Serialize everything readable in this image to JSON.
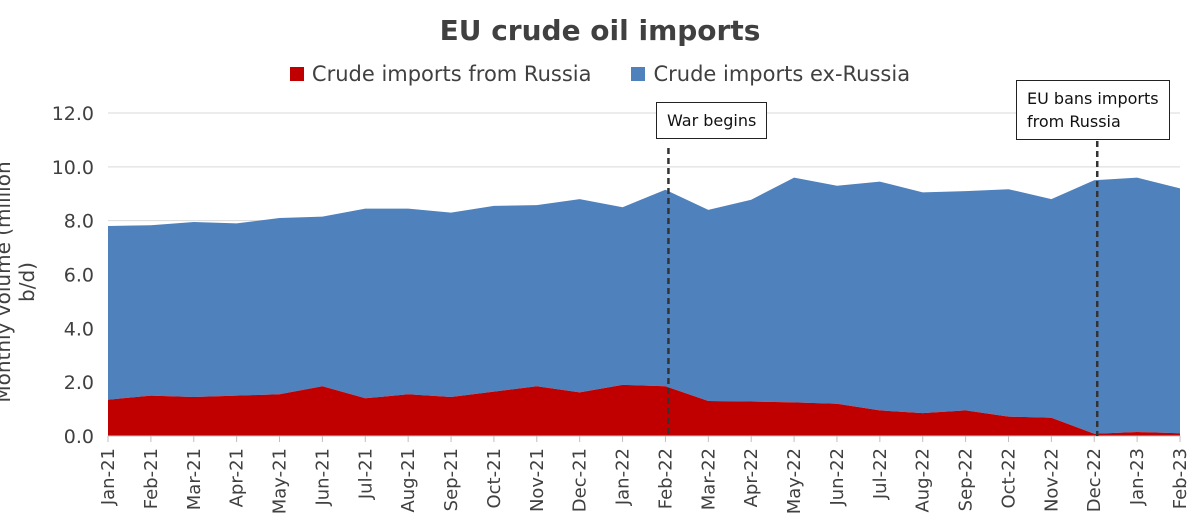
{
  "chart_data": {
    "type": "area",
    "stacked": true,
    "title": "EU crude oil imports",
    "ylabel": "Monthly volume (million b/d)",
    "xlabel": "",
    "ylim": [
      0,
      12
    ],
    "yticks": [
      "0.0",
      "2.0",
      "4.0",
      "6.0",
      "8.0",
      "10.0",
      "12.0"
    ],
    "grid": true,
    "legend_position": "top",
    "categories": [
      "Jan-21",
      "Feb-21",
      "Mar-21",
      "Apr-21",
      "May-21",
      "Jun-21",
      "Jul-21",
      "Aug-21",
      "Sep-21",
      "Oct-21",
      "Nov-21",
      "Dec-21",
      "Jan-22",
      "Feb-22",
      "Mar-22",
      "Apr-22",
      "May-22",
      "Jun-22",
      "Jul-22",
      "Aug-22",
      "Sep-22",
      "Oct-22",
      "Nov-22",
      "Dec-22",
      "Jan-23",
      "Feb-23"
    ],
    "series": [
      {
        "name": "Crude imports from Russia",
        "color": "#C00000",
        "values": [
          1.35,
          1.5,
          1.45,
          1.5,
          1.55,
          1.85,
          1.4,
          1.55,
          1.45,
          1.65,
          1.85,
          1.62,
          1.9,
          1.85,
          1.3,
          1.28,
          1.25,
          1.2,
          0.95,
          0.85,
          0.95,
          0.72,
          0.68,
          0.08,
          0.15,
          0.1
        ]
      },
      {
        "name": "Crude imports ex-Russia",
        "color": "#4F81BD",
        "values": [
          6.45,
          6.33,
          6.5,
          6.4,
          6.55,
          6.3,
          7.05,
          6.9,
          6.85,
          6.9,
          6.73,
          7.18,
          6.6,
          7.3,
          7.1,
          7.5,
          8.35,
          8.1,
          8.5,
          8.2,
          8.15,
          8.45,
          8.12,
          9.42,
          9.45,
          9.1
        ]
      }
    ],
    "annotations": [
      {
        "text_lines": [
          "War begins"
        ],
        "category": "Feb-22"
      },
      {
        "text_lines": [
          "EU bans imports",
          "from Russia"
        ],
        "category": "Dec-22"
      }
    ]
  }
}
